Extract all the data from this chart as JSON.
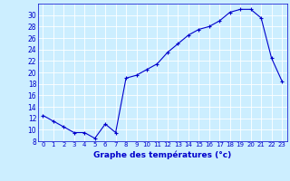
{
  "x": [
    0,
    1,
    2,
    3,
    4,
    5,
    6,
    7,
    8,
    9,
    10,
    11,
    12,
    13,
    14,
    15,
    16,
    17,
    18,
    19,
    20,
    21,
    22,
    23
  ],
  "y": [
    12.5,
    11.5,
    10.5,
    9.5,
    9.5,
    8.5,
    11.0,
    9.5,
    19.0,
    19.5,
    20.5,
    21.5,
    23.5,
    25.0,
    26.5,
    27.5,
    28.0,
    29.0,
    30.5,
    31.0,
    31.0,
    29.5,
    22.5,
    18.5
  ],
  "line_color": "#0000cc",
  "marker": "+",
  "xlabel": "Graphe des températures (°c)",
  "bg_color": "#cceeff",
  "grid_color": "#ffffff",
  "ylim": [
    8,
    32
  ],
  "yticks": [
    8,
    10,
    12,
    14,
    16,
    18,
    20,
    22,
    24,
    26,
    28,
    30
  ],
  "xlim": [
    -0.5,
    23.5
  ],
  "xlabel_color": "#0000cc"
}
